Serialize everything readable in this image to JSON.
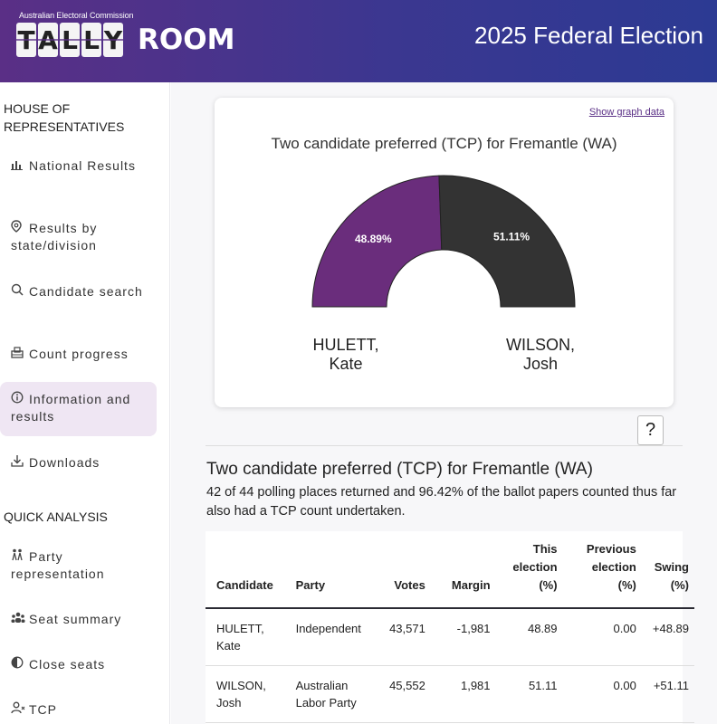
{
  "header": {
    "org": "Australian Electoral Commission",
    "logo_tally": [
      "T",
      "A",
      "L",
      "L",
      "Y"
    ],
    "logo_room": "ROOM",
    "title": "2025 Federal Election"
  },
  "sidebar": {
    "section1": "HOUSE OF REPRESENTATIVES",
    "items": [
      {
        "icon": "bar-chart-icon",
        "glyph": "📊",
        "label": "National Results"
      },
      {
        "icon": "map-pin-icon",
        "glyph": "⌖",
        "label": "Results by state/division"
      },
      {
        "icon": "search-icon",
        "glyph": "🔍",
        "label": "Candidate search"
      },
      {
        "icon": "ballot-box-icon",
        "glyph": "▭",
        "label": "Count progress"
      },
      {
        "icon": "info-icon",
        "glyph": "ⓘ",
        "label": "Information and results"
      },
      {
        "icon": "download-icon",
        "glyph": "⤓",
        "label": "Downloads"
      }
    ],
    "section2": "QUICK ANALYSIS",
    "items2": [
      {
        "icon": "party-icon",
        "glyph": "⚑",
        "label": "Party representation"
      },
      {
        "icon": "group-icon",
        "glyph": "☺",
        "label": "Seat summary"
      },
      {
        "icon": "half-circle-icon",
        "glyph": "◐",
        "label": "Close seats"
      },
      {
        "icon": "user-x-icon",
        "glyph": "☺",
        "label": "TCP"
      }
    ]
  },
  "chart": {
    "show_graph_link": "Show graph data",
    "title": "Two candidate preferred (TCP) for Fremantle (WA)",
    "colors": {
      "hulett": "#6a2d7c",
      "wilson": "#333333"
    }
  },
  "chart_data": {
    "type": "pie",
    "title": "Two candidate preferred (TCP) for Fremantle (WA)",
    "categories": [
      "HULETT, Kate",
      "WILSON, Josh"
    ],
    "values": [
      48.89,
      51.11
    ],
    "value_labels": [
      "48.89%",
      "51.11%"
    ],
    "label_lines": [
      [
        "HULETT,",
        "Kate"
      ],
      [
        "WILSON,",
        "Josh"
      ]
    ]
  },
  "help_label": "?",
  "section": {
    "heading": "Two candidate preferred (TCP) for Fremantle (WA)",
    "desc_line1": "42 of 44 polling places returned and 96.42% of the ballot papers counted thus far",
    "desc_line2": "also had a TCP count undertaken."
  },
  "table": {
    "headers": [
      "Candidate",
      "Party",
      "Votes",
      "Margin",
      "This election (%)",
      "Previous election (%)",
      "Swing (%)"
    ],
    "rows": [
      [
        "HULETT, Kate",
        "Independent",
        "43,571",
        "-1,981",
        "48.89",
        "0.00",
        "+48.89"
      ],
      [
        "WILSON, Josh",
        "Australian Labor Party",
        "45,552",
        "1,981",
        "51.11",
        "0.00",
        "+51.11"
      ]
    ]
  }
}
